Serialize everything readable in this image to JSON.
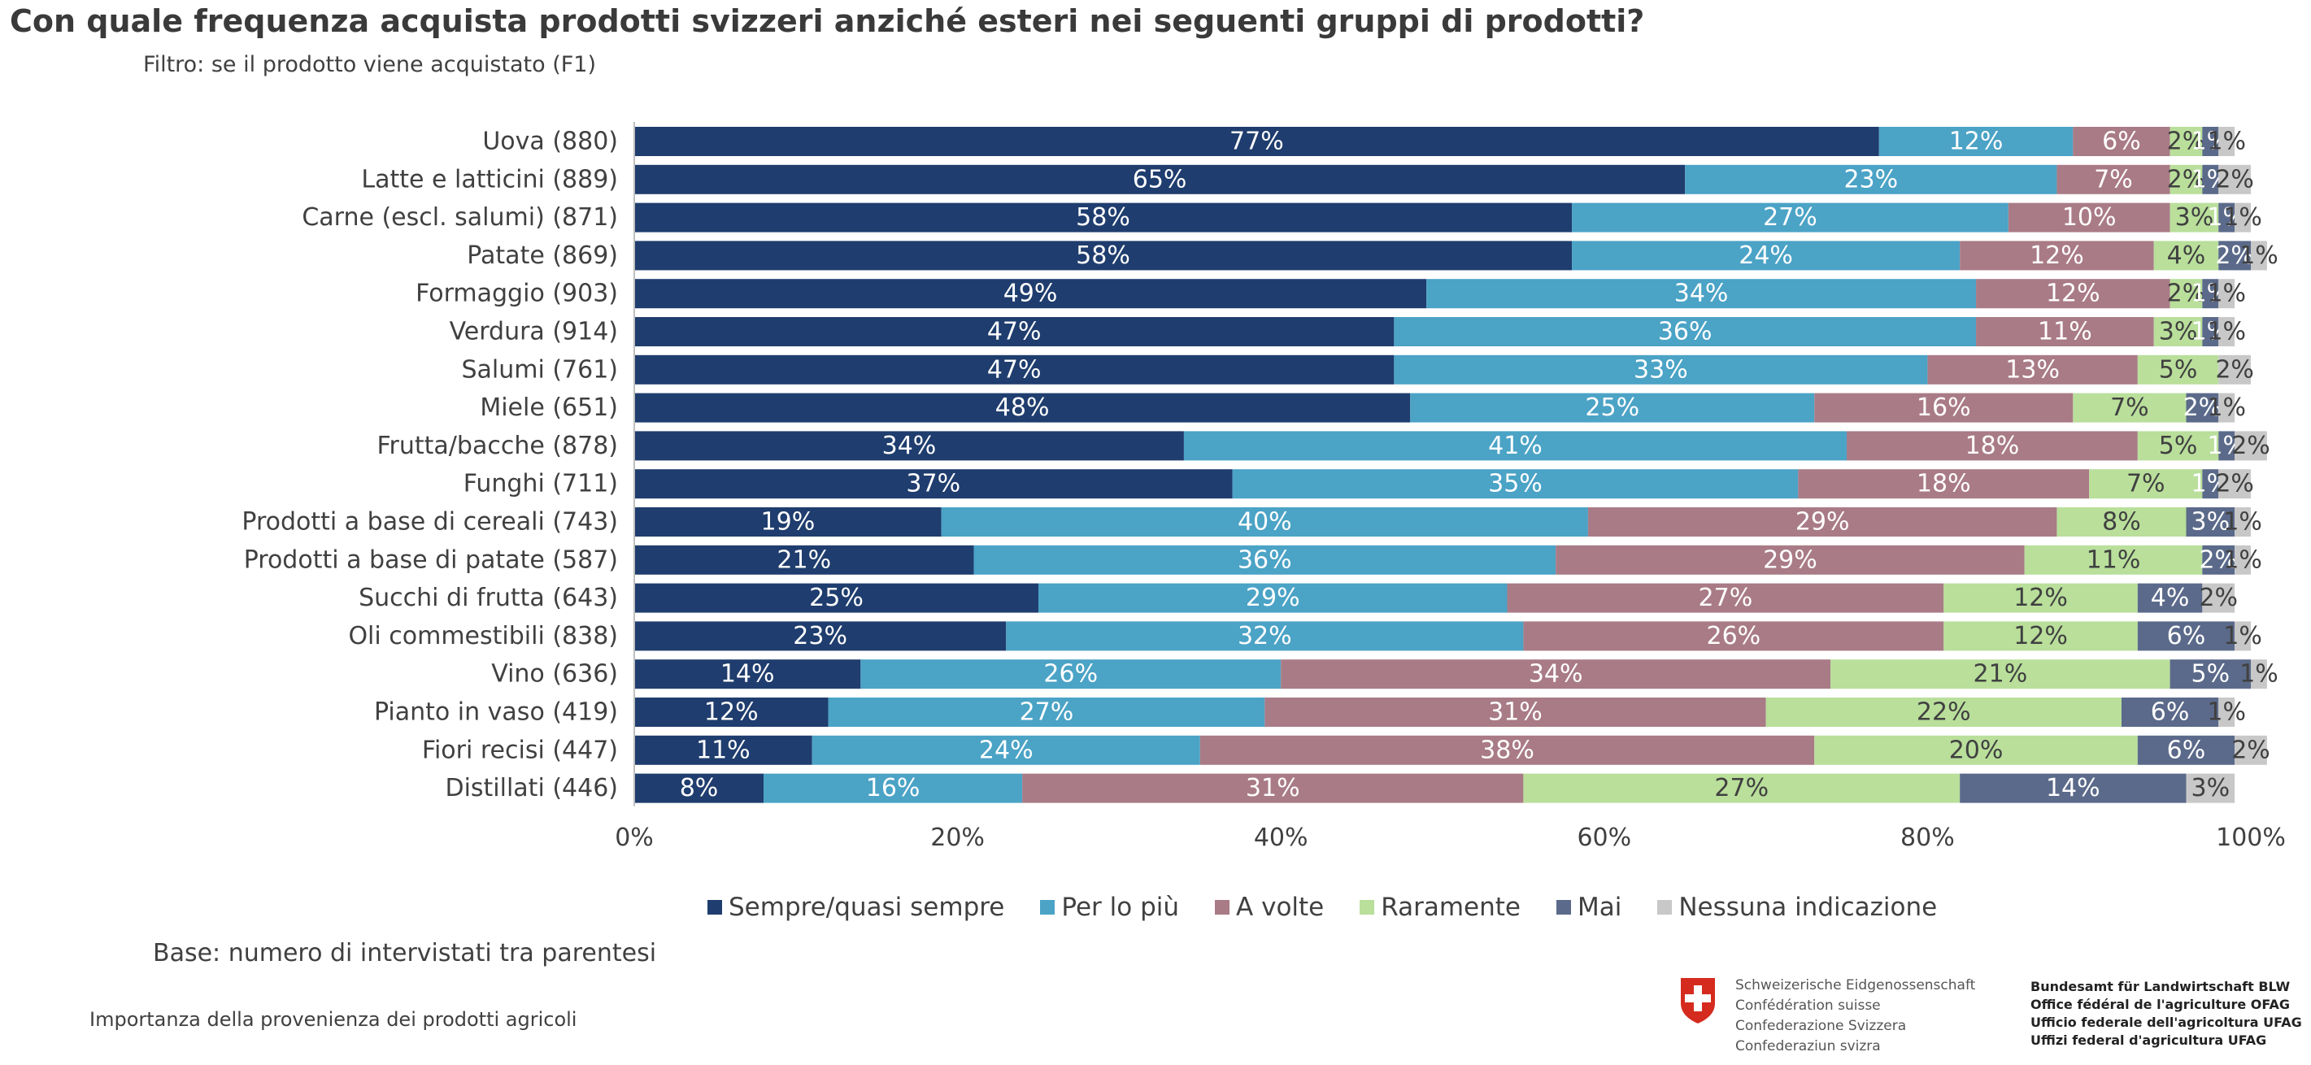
{
  "title": "Con quale frequenza acquista prodotti svizzeri anziché esteri nei seguenti gruppi di prodotti?",
  "subtitle": "Filtro: se il prodotto viene acquistato (F1)",
  "base_note": "Base: numero di intervistati tra parentesi",
  "footer_note": "Importanza della provenienza dei prodotti agricoli",
  "logo": {
    "icon": "swiss-cross-icon",
    "confederation_names": [
      "Schweizerische Eidgenossenschaft",
      "Confédération suisse",
      "Confederazione Svizzera",
      "Confederaziun svizra"
    ],
    "office_names": [
      "Bundesamt für Landwirtschaft BLW",
      "Office fédéral de l'agriculture OFAG",
      "Ufficio federale dell'agricoltura UFAG",
      "Uffizi federal d'agricultura UFAG"
    ]
  },
  "chart_data": {
    "type": "bar",
    "orientation": "horizontal",
    "stacked": "100%",
    "title": "Con quale frequenza acquista prodotti svizzeri anziché esteri nei seguenti gruppi di prodotti?",
    "xlabel": "",
    "ylabel": "",
    "xlim": [
      0,
      100
    ],
    "x_ticks": [
      "0%",
      "20%",
      "40%",
      "60%",
      "80%",
      "100%"
    ],
    "grid": false,
    "legend_position": "bottom",
    "categories": [
      "Uova (880)",
      "Latte e latticini (889)",
      "Carne (escl. salumi) (871)",
      "Patate (869)",
      "Formaggio (903)",
      "Verdura (914)",
      "Salumi (761)",
      "Miele (651)",
      "Frutta/bacche (878)",
      "Funghi (711)",
      "Prodotti a base di cereali (743)",
      "Prodotti a base di patate (587)",
      "Succhi di frutta (643)",
      "Oli commestibili (838)",
      "Vino (636)",
      "Pianto in vaso (419)",
      "Fiori recisi (447)",
      "Distillati (446)"
    ],
    "series": [
      {
        "name": "Sempre/quasi sempre",
        "color": "#1f3d6e",
        "label_color": "#ffffff",
        "values": [
          77,
          65,
          58,
          58,
          49,
          47,
          47,
          48,
          34,
          37,
          19,
          21,
          25,
          23,
          14,
          12,
          11,
          8
        ]
      },
      {
        "name": "Per lo più",
        "color": "#4ba3c6",
        "label_color": "#ffffff",
        "values": [
          12,
          23,
          27,
          24,
          34,
          36,
          33,
          25,
          41,
          35,
          40,
          36,
          29,
          32,
          26,
          27,
          24,
          16
        ]
      },
      {
        "name": "A volte",
        "color": "#a97b87",
        "label_color": "#ffffff",
        "values": [
          6,
          7,
          10,
          12,
          12,
          11,
          13,
          16,
          18,
          18,
          29,
          29,
          27,
          26,
          34,
          31,
          38,
          31
        ]
      },
      {
        "name": "Raramente",
        "color": "#b9df9b",
        "label_color": "#404040",
        "values": [
          2,
          2,
          3,
          4,
          2,
          3,
          5,
          7,
          5,
          7,
          8,
          11,
          12,
          12,
          21,
          22,
          20,
          27
        ]
      },
      {
        "name": "Mai",
        "color": "#5b6a8a",
        "label_color": "#ffffff",
        "values": [
          1,
          1,
          1,
          2,
          1,
          1,
          0,
          2,
          1,
          1,
          3,
          2,
          4,
          6,
          5,
          6,
          6,
          14
        ]
      },
      {
        "name": "Nessuna indicazione",
        "color": "#c8c8c8",
        "label_color": "#404040",
        "values": [
          1,
          2,
          1,
          1,
          1,
          1,
          2,
          1,
          2,
          2,
          1,
          1,
          2,
          1,
          1,
          1,
          2,
          3
        ]
      }
    ]
  }
}
